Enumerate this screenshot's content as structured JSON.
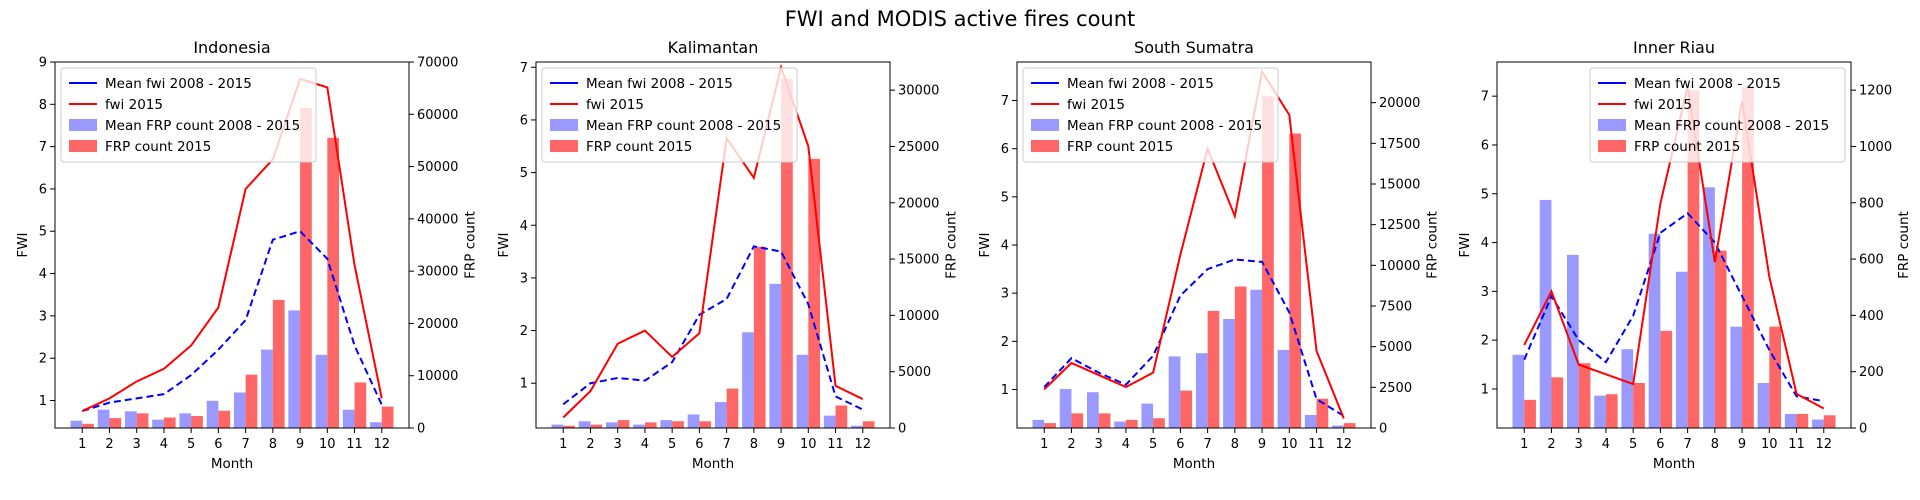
{
  "figure": {
    "title": "FWI and MODIS active fires count"
  },
  "chart_data": [
    {
      "type": "bar",
      "title": "Indonesia",
      "xlabel": "Month",
      "ylabel": "FWI",
      "y2label": "FRP count",
      "categories": [
        "1",
        "2",
        "3",
        "4",
        "5",
        "6",
        "7",
        "8",
        "9",
        "10",
        "11",
        "12"
      ],
      "ylim": [
        0.35,
        9.0
      ],
      "yticks": [
        1,
        2,
        3,
        4,
        5,
        6,
        7,
        8,
        9
      ],
      "y2lim": [
        0,
        70000
      ],
      "y2ticks": [
        0,
        10000,
        20000,
        30000,
        40000,
        50000,
        60000,
        70000
      ],
      "legend": "top-left",
      "series": [
        {
          "name": "Mean fwi 2008 - 2015",
          "kind": "line",
          "axis": "left",
          "color": "#0000ff",
          "dash": true,
          "values": [
            0.75,
            0.95,
            1.05,
            1.15,
            1.6,
            2.2,
            2.9,
            4.8,
            5.0,
            4.35,
            2.3,
            0.9
          ]
        },
        {
          "name": "fwi 2015",
          "kind": "line",
          "axis": "left",
          "color": "#ff0000",
          "dash": false,
          "values": [
            0.75,
            1.05,
            1.45,
            1.75,
            2.3,
            3.2,
            6.0,
            6.7,
            8.6,
            8.4,
            4.2,
            1.05
          ]
        },
        {
          "name": "Mean FRP count 2008 - 2015",
          "kind": "bar",
          "axis": "right",
          "color": "#9999ff",
          "values": [
            1400,
            3500,
            3200,
            1600,
            2800,
            5200,
            6800,
            15000,
            22500,
            14000,
            3500,
            1100
          ]
        },
        {
          "name": "FRP count 2015",
          "kind": "bar",
          "axis": "right",
          "color": "#ff6666",
          "values": [
            800,
            1900,
            2800,
            2000,
            2300,
            3300,
            10200,
            24500,
            61200,
            55500,
            8700,
            4100
          ]
        }
      ]
    },
    {
      "type": "bar",
      "title": "Kalimantan",
      "xlabel": "Month",
      "ylabel": "FWI",
      "y2label": "FRP count",
      "categories": [
        "1",
        "2",
        "3",
        "4",
        "5",
        "6",
        "7",
        "8",
        "9",
        "10",
        "11",
        "12"
      ],
      "ylim": [
        0.15,
        7.1
      ],
      "yticks": [
        1,
        2,
        3,
        4,
        5,
        6,
        7
      ],
      "y2lim": [
        0,
        32500
      ],
      "y2ticks": [
        0,
        5000,
        10000,
        15000,
        20000,
        25000,
        30000
      ],
      "legend": "top-left",
      "series": [
        {
          "name": "Mean fwi 2008 - 2015",
          "kind": "line",
          "axis": "left",
          "color": "#0000ff",
          "dash": true,
          "values": [
            0.6,
            1.0,
            1.1,
            1.05,
            1.4,
            2.3,
            2.6,
            3.6,
            3.5,
            2.5,
            0.75,
            0.5
          ]
        },
        {
          "name": "fwi 2015",
          "kind": "line",
          "axis": "left",
          "color": "#ff0000",
          "dash": false,
          "values": [
            0.35,
            0.85,
            1.75,
            2.0,
            1.5,
            1.95,
            5.65,
            4.9,
            7.0,
            5.5,
            0.95,
            0.7
          ]
        },
        {
          "name": "Mean FRP count 2008 - 2015",
          "kind": "bar",
          "axis": "right",
          "color": "#9999ff",
          "values": [
            300,
            600,
            500,
            300,
            700,
            1200,
            2300,
            8500,
            12800,
            6500,
            1100,
            200
          ]
        },
        {
          "name": "FRP count 2015",
          "kind": "bar",
          "axis": "right",
          "color": "#ff6666",
          "values": [
            200,
            300,
            700,
            500,
            600,
            600,
            3500,
            16100,
            31000,
            23900,
            2000,
            600
          ]
        }
      ]
    },
    {
      "type": "bar",
      "title": "South Sumatra",
      "xlabel": "Month",
      "ylabel": "FWI",
      "y2label": "FRP count",
      "categories": [
        "1",
        "2",
        "3",
        "4",
        "5",
        "6",
        "7",
        "8",
        "9",
        "10",
        "11",
        "12"
      ],
      "ylim": [
        0.2,
        7.8
      ],
      "yticks": [
        1,
        2,
        3,
        4,
        5,
        6,
        7
      ],
      "y2lim": [
        0,
        22500
      ],
      "y2ticks": [
        0,
        2500,
        5000,
        7500,
        10000,
        12500,
        15000,
        17500,
        20000
      ],
      "legend": "top-left",
      "series": [
        {
          "name": "Mean fwi 2008 - 2015",
          "kind": "line",
          "axis": "left",
          "color": "#0000ff",
          "dash": true,
          "values": [
            1.05,
            1.65,
            1.35,
            1.1,
            1.7,
            2.95,
            3.5,
            3.7,
            3.65,
            2.6,
            0.8,
            0.45
          ]
        },
        {
          "name": "fwi 2015",
          "kind": "line",
          "axis": "left",
          "color": "#ff0000",
          "dash": false,
          "values": [
            1.0,
            1.55,
            1.3,
            1.05,
            1.35,
            3.8,
            6.0,
            4.6,
            7.6,
            6.7,
            1.8,
            0.4
          ]
        },
        {
          "name": "Mean FRP count 2008 - 2015",
          "kind": "bar",
          "axis": "right",
          "color": "#9999ff",
          "values": [
            500,
            2400,
            2200,
            400,
            1500,
            4400,
            4600,
            6700,
            8500,
            4800,
            800,
            150
          ]
        },
        {
          "name": "FRP count 2015",
          "kind": "bar",
          "axis": "right",
          "color": "#ff6666",
          "values": [
            300,
            900,
            900,
            500,
            600,
            2300,
            7200,
            8700,
            20400,
            18100,
            1800,
            300
          ]
        }
      ]
    },
    {
      "type": "bar",
      "title": "Inner Riau",
      "xlabel": "Month",
      "ylabel": "FWI",
      "y2label": "FRP count",
      "categories": [
        "1",
        "2",
        "3",
        "4",
        "5",
        "6",
        "7",
        "8",
        "9",
        "10",
        "11",
        "12"
      ],
      "ylim": [
        0.2,
        7.7
      ],
      "yticks": [
        1,
        2,
        3,
        4,
        5,
        6,
        7
      ],
      "y2lim": [
        0,
        1300
      ],
      "y2ticks": [
        0,
        200,
        400,
        600,
        800,
        1000,
        1200
      ],
      "legend": "top-right",
      "series": [
        {
          "name": "Mean fwi 2008 - 2015",
          "kind": "line",
          "axis": "left",
          "color": "#0000ff",
          "dash": true,
          "values": [
            1.6,
            2.9,
            2.0,
            1.55,
            2.5,
            4.2,
            4.6,
            4.0,
            2.9,
            1.8,
            0.85,
            0.75
          ]
        },
        {
          "name": "fwi 2015",
          "kind": "line",
          "axis": "left",
          "color": "#ff0000",
          "dash": false,
          "values": [
            1.9,
            3.0,
            1.5,
            1.3,
            1.1,
            4.8,
            7.2,
            3.6,
            6.9,
            3.3,
            0.9,
            0.6
          ]
        },
        {
          "name": "Mean FRP count 2008 - 2015",
          "kind": "bar",
          "axis": "right",
          "color": "#9999ff",
          "values": [
            260,
            810,
            615,
            115,
            280,
            690,
            555,
            855,
            360,
            160,
            50,
            30
          ]
        },
        {
          "name": "FRP count 2015",
          "kind": "bar",
          "axis": "right",
          "color": "#ff6666",
          "values": [
            100,
            180,
            230,
            120,
            160,
            345,
            1200,
            630,
            1210,
            360,
            50,
            45
          ]
        }
      ]
    }
  ]
}
